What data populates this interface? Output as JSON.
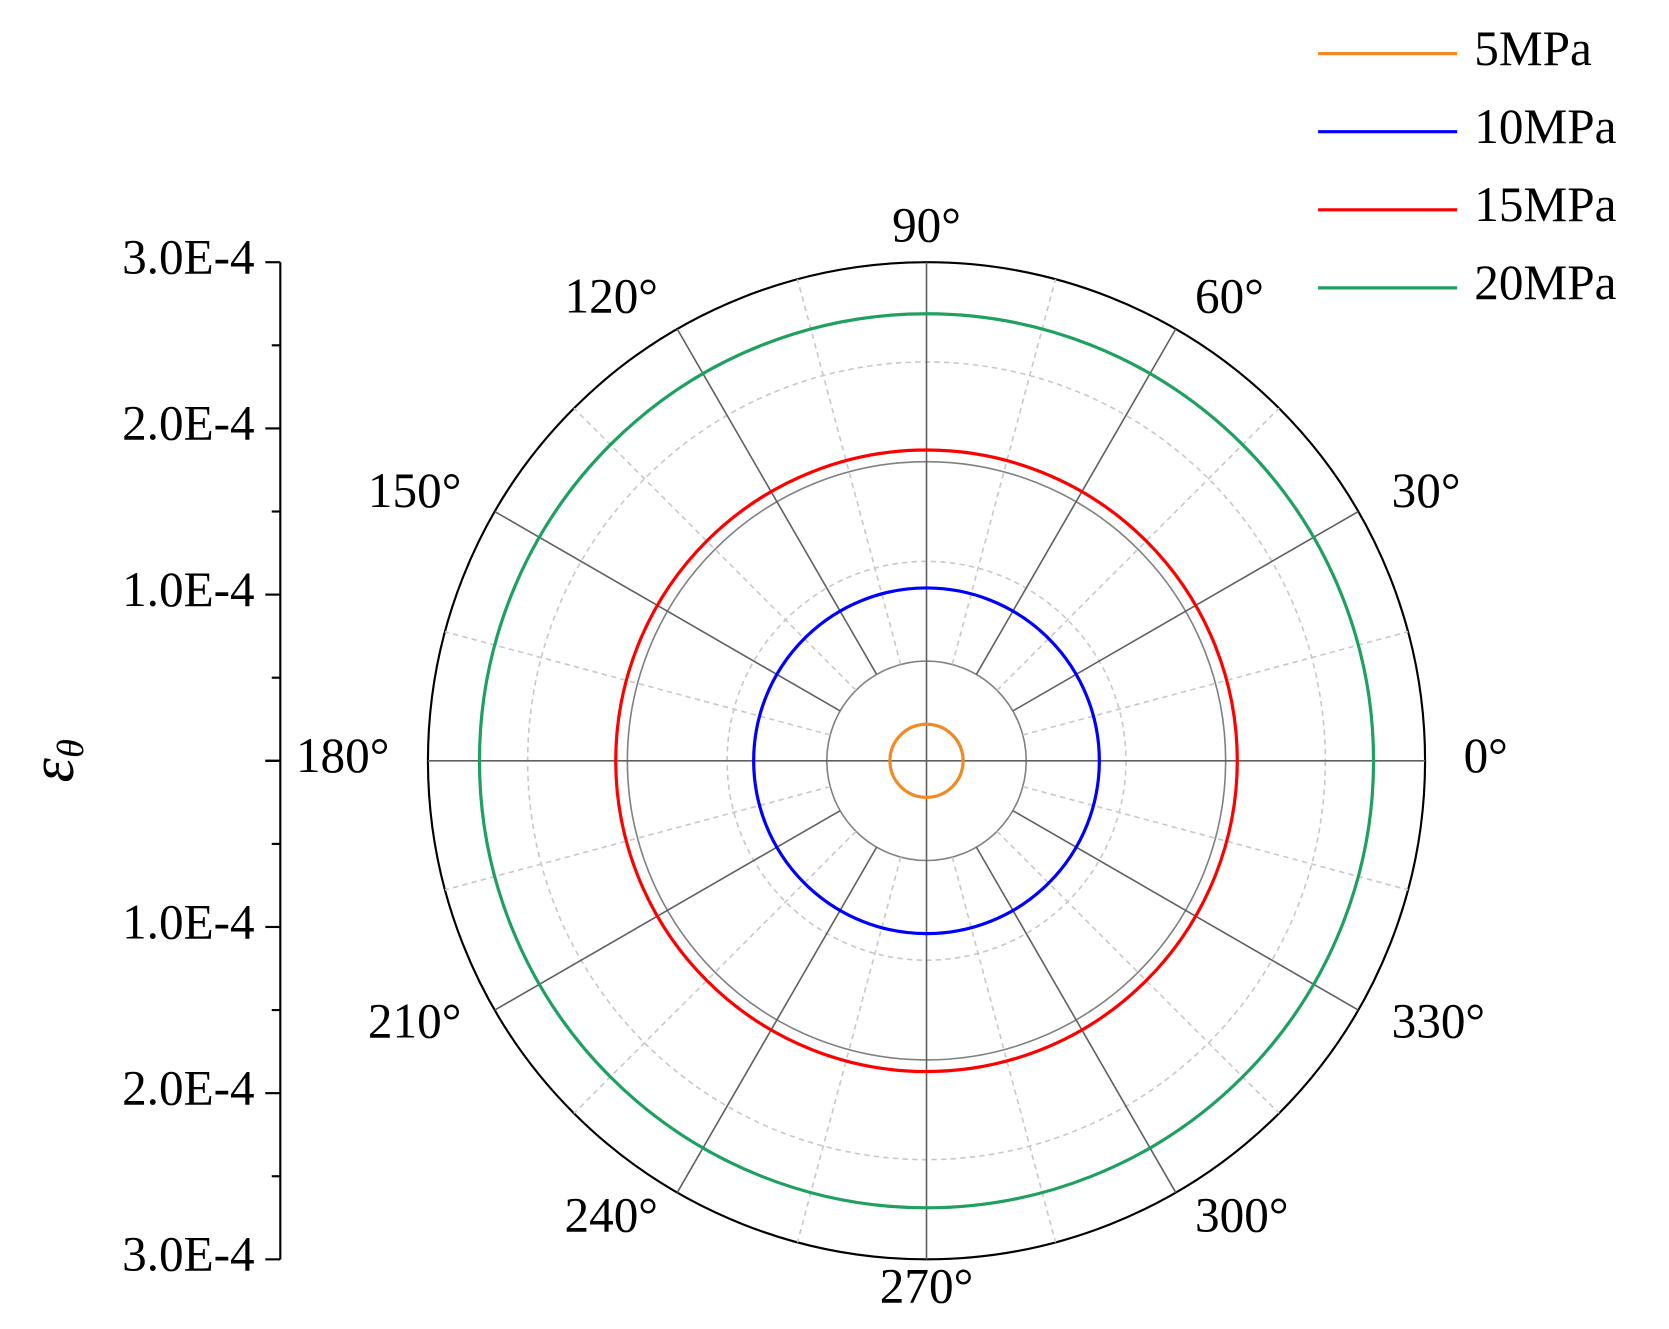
{
  "chart_data": {
    "type": "polar",
    "y_label": {
      "symbol": "ε",
      "subscript": "θ"
    },
    "ylim": [
      0,
      0.0003
    ],
    "yticks": [
      {
        "value": 0.0003,
        "label": "3.0E-4"
      },
      {
        "value": 0.0002,
        "label": "2.0E-4"
      },
      {
        "value": 0.0001,
        "label": "1.0E-4"
      },
      0
    ],
    "yminorticks": [
      5e-05,
      0.00015,
      0.00025
    ],
    "rgrid_major": [
      6e-05,
      0.00018,
      0.0003
    ],
    "rgrid_minor": [
      0.00012,
      0.00024
    ],
    "angle_ticks": [
      {
        "value": 0,
        "label": "0°"
      },
      {
        "value": 30,
        "label": "30°"
      },
      {
        "value": 60,
        "label": "60°"
      },
      {
        "value": 90,
        "label": "90°"
      },
      {
        "value": 120,
        "label": "120°"
      },
      {
        "value": 150,
        "label": "150°"
      },
      {
        "value": 180,
        "label": "180°"
      },
      {
        "value": 210,
        "label": "210°"
      },
      {
        "value": 240,
        "label": "240°"
      },
      {
        "value": 270,
        "label": "270°"
      },
      {
        "value": 300,
        "label": "300°"
      },
      {
        "value": 330,
        "label": "330°"
      }
    ],
    "angle_minor_ticks": [
      15,
      45,
      75,
      105,
      135,
      165,
      195,
      225,
      255,
      285,
      315,
      345
    ],
    "series": [
      {
        "name": "5MPa",
        "color": "#f08a24",
        "values": [
          2.2e-05
        ]
      },
      {
        "name": "10MPa",
        "color": "#0000ff",
        "values": [
          0.000104
        ]
      },
      {
        "name": "15MPa",
        "color": "#ff0000",
        "values": [
          0.000187
        ]
      },
      {
        "name": "20MPa",
        "color": "#1fa060",
        "values": [
          0.000269
        ]
      }
    ]
  }
}
